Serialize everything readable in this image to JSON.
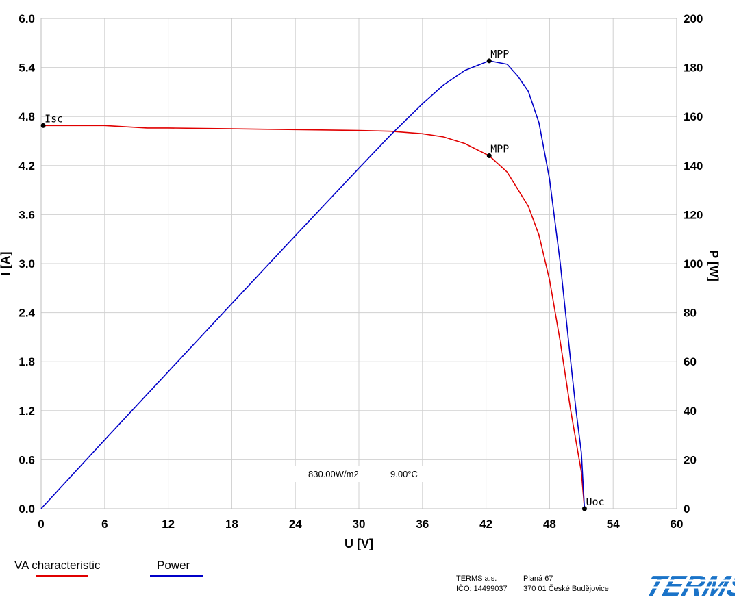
{
  "chart_data": {
    "type": "line",
    "xlabel": "U [V]",
    "ylabel_left": "I [A]",
    "ylabel_right": "P [W]",
    "xlim": [
      0,
      60
    ],
    "ylim_left": [
      0,
      6.0
    ],
    "ylim_right": [
      0,
      200
    ],
    "x_ticks": [
      "0",
      "6",
      "12",
      "18",
      "24",
      "30",
      "36",
      "42",
      "48",
      "54",
      "60"
    ],
    "y_left_ticks": [
      "0.0",
      "0.6",
      "1.2",
      "1.8",
      "2.4",
      "3.0",
      "3.6",
      "4.2",
      "4.8",
      "5.4",
      "6.0"
    ],
    "y_right_ticks": [
      "0",
      "20",
      "40",
      "60",
      "80",
      "100",
      "120",
      "140",
      "160",
      "180",
      "200"
    ],
    "grid": true,
    "series": [
      {
        "name": "VA characteristic",
        "axis": "left",
        "color": "#e00000",
        "x": [
          0,
          6,
          10,
          12,
          18,
          24,
          30,
          33,
          36,
          38,
          40,
          42.3,
          44,
          46,
          47,
          48,
          49,
          50,
          51,
          51.3
        ],
        "y": [
          4.69,
          4.69,
          4.66,
          4.66,
          4.65,
          4.64,
          4.63,
          4.62,
          4.59,
          4.55,
          4.47,
          4.32,
          4.12,
          3.7,
          3.35,
          2.8,
          2.05,
          1.2,
          0.45,
          0.0
        ]
      },
      {
        "name": "Power",
        "axis": "right",
        "color": "#0000c8",
        "x": [
          0,
          6,
          12,
          18,
          24,
          30,
          33,
          36,
          38,
          40,
          42.3,
          44,
          45,
          46,
          47,
          48,
          49,
          50,
          50.5,
          51,
          51.3
        ],
        "y": [
          0,
          28.1,
          55.9,
          83.7,
          111.4,
          138.9,
          152.5,
          165.2,
          172.9,
          178.8,
          182.7,
          181.3,
          176.5,
          170.2,
          157.5,
          134.4,
          100.5,
          60.0,
          40.0,
          22.9,
          0
        ]
      }
    ],
    "annotations": [
      {
        "label": "Isc",
        "axis": "left",
        "x": 0.2,
        "y": 4.69
      },
      {
        "label": "MPP",
        "axis": "right",
        "x": 42.3,
        "y": 182.7
      },
      {
        "label": "MPP",
        "axis": "left",
        "x": 42.3,
        "y": 4.32
      },
      {
        "label": "Uoc",
        "axis": "left",
        "x": 51.3,
        "y": 0.0
      }
    ],
    "conditions": {
      "irradiance": "830.00W/m2",
      "temperature": "9.00°C"
    }
  },
  "legend": [
    {
      "label": "VA characteristic",
      "color": "#e00000"
    },
    {
      "label": "Power",
      "color": "#0000c8"
    }
  ],
  "footer": {
    "company": "TERMS a.s.",
    "ico": "IČO: 14499037",
    "street": "Planá 67",
    "city": "370 01 České Budějovice",
    "logo_text": "TERMS",
    "logo_color": "#1a73c8"
  }
}
